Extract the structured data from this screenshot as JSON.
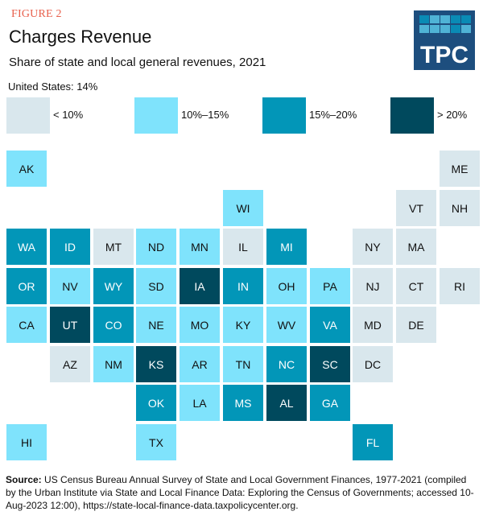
{
  "figure_label": "FIGURE 2",
  "logo": {
    "text": "TPC",
    "tile_colors": [
      "#0a8bb5",
      "#4fb3d6",
      "#4fb3d6",
      "#0a8bb5",
      "#0a8bb5",
      "#4fb3d6",
      "#4fb3d6",
      "#4fb3d6",
      "#0a8bb5",
      "#4fb3d6"
    ]
  },
  "header": {
    "title": "Charges Revenue",
    "subtitle": "Share of state and local general revenues, 2021",
    "us_value": "United States: 14%"
  },
  "legend": [
    {
      "label": "< 10%",
      "color": "#d9e7ed"
    },
    {
      "label": "10%–15%",
      "color": "#7fe3fc"
    },
    {
      "label": "15%–20%",
      "color": "#0296b8"
    },
    {
      "label": "> 20%",
      "color": "#00495d"
    }
  ],
  "source": {
    "label": "Source:",
    "text": " US Census Bureau Annual Survey of State and Local Government Finances, 1977-2021 (compiled by the Urban Institute via State and Local Finance Data: Exploring the Census of Governments; accessed 10-Aug-2023 12:00), https://state-local-finance-data.taxpolicycenter.org."
  },
  "chart_data": {
    "type": "heatmap",
    "title": "Charges Revenue",
    "subtitle": "Share of state and local general revenues, 2021",
    "national_value": "14%",
    "bins": [
      "< 10%",
      "10%–15%",
      "15%–20%",
      "> 20%"
    ],
    "states": [
      {
        "abbr": "AK",
        "row": 0,
        "col": 0,
        "bin": 1
      },
      {
        "abbr": "ME",
        "row": 0,
        "col": 10,
        "bin": 0
      },
      {
        "abbr": "WI",
        "row": 1,
        "col": 5,
        "bin": 1
      },
      {
        "abbr": "VT",
        "row": 1,
        "col": 9,
        "bin": 0
      },
      {
        "abbr": "NH",
        "row": 1,
        "col": 10,
        "bin": 0
      },
      {
        "abbr": "WA",
        "row": 2,
        "col": 0,
        "bin": 2
      },
      {
        "abbr": "ID",
        "row": 2,
        "col": 1,
        "bin": 2
      },
      {
        "abbr": "MT",
        "row": 2,
        "col": 2,
        "bin": 0
      },
      {
        "abbr": "ND",
        "row": 2,
        "col": 3,
        "bin": 1
      },
      {
        "abbr": "MN",
        "row": 2,
        "col": 4,
        "bin": 1
      },
      {
        "abbr": "IL",
        "row": 2,
        "col": 5,
        "bin": 0
      },
      {
        "abbr": "MI",
        "row": 2,
        "col": 6,
        "bin": 2
      },
      {
        "abbr": "NY",
        "row": 2,
        "col": 8,
        "bin": 0
      },
      {
        "abbr": "MA",
        "row": 2,
        "col": 9,
        "bin": 0
      },
      {
        "abbr": "OR",
        "row": 3,
        "col": 0,
        "bin": 2
      },
      {
        "abbr": "NV",
        "row": 3,
        "col": 1,
        "bin": 1
      },
      {
        "abbr": "WY",
        "row": 3,
        "col": 2,
        "bin": 2
      },
      {
        "abbr": "SD",
        "row": 3,
        "col": 3,
        "bin": 1
      },
      {
        "abbr": "IA",
        "row": 3,
        "col": 4,
        "bin": 3
      },
      {
        "abbr": "IN",
        "row": 3,
        "col": 5,
        "bin": 2
      },
      {
        "abbr": "OH",
        "row": 3,
        "col": 6,
        "bin": 1
      },
      {
        "abbr": "PA",
        "row": 3,
        "col": 7,
        "bin": 1
      },
      {
        "abbr": "NJ",
        "row": 3,
        "col": 8,
        "bin": 0
      },
      {
        "abbr": "CT",
        "row": 3,
        "col": 9,
        "bin": 0
      },
      {
        "abbr": "RI",
        "row": 3,
        "col": 10,
        "bin": 0
      },
      {
        "abbr": "CA",
        "row": 4,
        "col": 0,
        "bin": 1
      },
      {
        "abbr": "UT",
        "row": 4,
        "col": 1,
        "bin": 3
      },
      {
        "abbr": "CO",
        "row": 4,
        "col": 2,
        "bin": 2
      },
      {
        "abbr": "NE",
        "row": 4,
        "col": 3,
        "bin": 1
      },
      {
        "abbr": "MO",
        "row": 4,
        "col": 4,
        "bin": 1
      },
      {
        "abbr": "KY",
        "row": 4,
        "col": 5,
        "bin": 1
      },
      {
        "abbr": "WV",
        "row": 4,
        "col": 6,
        "bin": 1
      },
      {
        "abbr": "VA",
        "row": 4,
        "col": 7,
        "bin": 2
      },
      {
        "abbr": "MD",
        "row": 4,
        "col": 8,
        "bin": 0
      },
      {
        "abbr": "DE",
        "row": 4,
        "col": 9,
        "bin": 0
      },
      {
        "abbr": "AZ",
        "row": 5,
        "col": 1,
        "bin": 0
      },
      {
        "abbr": "NM",
        "row": 5,
        "col": 2,
        "bin": 1
      },
      {
        "abbr": "KS",
        "row": 5,
        "col": 3,
        "bin": 3
      },
      {
        "abbr": "AR",
        "row": 5,
        "col": 4,
        "bin": 1
      },
      {
        "abbr": "TN",
        "row": 5,
        "col": 5,
        "bin": 1
      },
      {
        "abbr": "NC",
        "row": 5,
        "col": 6,
        "bin": 2
      },
      {
        "abbr": "SC",
        "row": 5,
        "col": 7,
        "bin": 3
      },
      {
        "abbr": "DC",
        "row": 5,
        "col": 8,
        "bin": 0
      },
      {
        "abbr": "OK",
        "row": 6,
        "col": 3,
        "bin": 2
      },
      {
        "abbr": "LA",
        "row": 6,
        "col": 4,
        "bin": 1
      },
      {
        "abbr": "MS",
        "row": 6,
        "col": 5,
        "bin": 2
      },
      {
        "abbr": "AL",
        "row": 6,
        "col": 6,
        "bin": 3
      },
      {
        "abbr": "GA",
        "row": 6,
        "col": 7,
        "bin": 2
      },
      {
        "abbr": "HI",
        "row": 7,
        "col": 0,
        "bin": 1
      },
      {
        "abbr": "TX",
        "row": 7,
        "col": 3,
        "bin": 1
      },
      {
        "abbr": "FL",
        "row": 7,
        "col": 8,
        "bin": 2
      }
    ]
  }
}
